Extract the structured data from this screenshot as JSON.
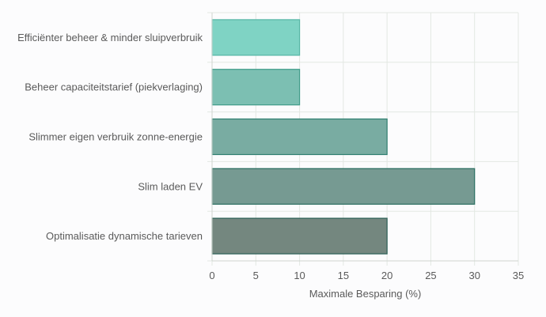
{
  "chart_data": {
    "type": "bar",
    "orientation": "horizontal",
    "categories": [
      "Efficiënter beheer & minder sluipverbruik",
      "Beheer capaciteitstarief (piekverlaging)",
      "Slimmer eigen verbruik zonne-energie",
      "Slim laden EV",
      "Optimalisatie dynamische tarieven"
    ],
    "values": [
      10,
      10,
      20,
      30,
      20
    ],
    "xlabel": "Maximale Besparing (%)",
    "ylabel": "",
    "xlim": [
      0,
      35
    ],
    "xticks": [
      0,
      5,
      10,
      15,
      20,
      25,
      30,
      35
    ],
    "grid": true,
    "legend": "none",
    "colors": {
      "fills": [
        "#7fd3c4",
        "#7cbfb2",
        "#79aca2",
        "#769a92",
        "#74877f"
      ],
      "strokes": [
        "#55b6a5",
        "#3f9c89",
        "#2f7f70",
        "#2a6e60",
        "#2a5f55"
      ],
      "grid": "#e3e8e3",
      "axis": "#cfd5cf",
      "text": "#5a5a5a"
    }
  }
}
